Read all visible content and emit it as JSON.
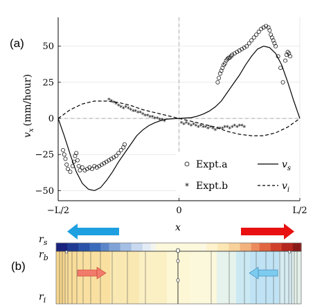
{
  "panel_a_label": "(a)",
  "panel_b_label": "(b)",
  "chart_data": {
    "type": "scatter",
    "xlabel": "x",
    "ylabel": "v_x (mm/hour)",
    "ylabel_var": "v",
    "ylabel_sub": "x",
    "ylabel_unit": "(mm/hour)",
    "xlim": [
      -1,
      1
    ],
    "ylim": [
      -57,
      70
    ],
    "x_ticks": [
      {
        "value": -1,
        "label": "−L/2"
      },
      {
        "value": 0,
        "label": "0"
      },
      {
        "value": 1,
        "label": "L/2"
      }
    ],
    "y_ticks": [
      {
        "value": 50,
        "label": "50"
      },
      {
        "value": 25,
        "label": "25"
      },
      {
        "value": 0,
        "label": "0"
      },
      {
        "value": -25,
        "label": "−25"
      },
      {
        "value": -50,
        "label": "−50"
      }
    ],
    "grid": true,
    "legend_position": "bottom-right",
    "legend": [
      {
        "label": "Expt.a",
        "marker": "circle"
      },
      {
        "label": "Expt.b",
        "marker": "asterisk"
      },
      {
        "label": "v_s",
        "var": "v",
        "sub": "s",
        "line": "solid"
      },
      {
        "label": "v_i",
        "var": "v",
        "sub": "i",
        "line": "dashed"
      }
    ],
    "series": [
      {
        "name": "Expt.a",
        "marker": "circle",
        "points": [
          [
            -0.96,
            -22
          ],
          [
            -0.95,
            -25
          ],
          [
            -0.94,
            -28
          ],
          [
            -0.93,
            -32
          ],
          [
            -0.92,
            -35
          ],
          [
            -0.9,
            -37
          ],
          [
            -0.88,
            -33
          ],
          [
            -0.87,
            -30
          ],
          [
            -0.86,
            -26
          ],
          [
            -0.85,
            -24
          ],
          [
            -0.84,
            -29
          ],
          [
            -0.83,
            -33
          ],
          [
            -0.82,
            -36
          ],
          [
            -0.8,
            -34
          ],
          [
            -0.78,
            -36
          ],
          [
            -0.76,
            -35
          ],
          [
            -0.74,
            -34
          ],
          [
            -0.72,
            -35
          ],
          [
            -0.7,
            -33
          ],
          [
            -0.68,
            -34
          ],
          [
            -0.66,
            -33
          ],
          [
            -0.64,
            -32
          ],
          [
            -0.62,
            -31
          ],
          [
            -0.6,
            -30
          ],
          [
            -0.58,
            -29
          ],
          [
            -0.56,
            -28
          ],
          [
            -0.54,
            -27
          ],
          [
            -0.52,
            -26
          ],
          [
            -0.5,
            -24
          ],
          [
            -0.48,
            -22
          ],
          [
            -0.46,
            -20
          ],
          [
            -0.45,
            -18
          ],
          [
            0.32,
            25
          ],
          [
            0.33,
            28
          ],
          [
            0.34,
            31
          ],
          [
            0.35,
            33
          ],
          [
            0.36,
            35
          ],
          [
            0.37,
            37
          ],
          [
            0.38,
            38
          ],
          [
            0.39,
            40
          ],
          [
            0.4,
            41
          ],
          [
            0.41,
            42
          ],
          [
            0.42,
            42
          ],
          [
            0.43,
            43
          ],
          [
            0.44,
            44
          ],
          [
            0.46,
            45
          ],
          [
            0.48,
            46
          ],
          [
            0.5,
            47
          ],
          [
            0.52,
            48
          ],
          [
            0.54,
            49
          ],
          [
            0.56,
            50
          ],
          [
            0.58,
            52
          ],
          [
            0.6,
            54
          ],
          [
            0.62,
            56
          ],
          [
            0.64,
            58
          ],
          [
            0.66,
            60
          ],
          [
            0.68,
            62
          ],
          [
            0.7,
            63
          ],
          [
            0.72,
            64
          ],
          [
            0.74,
            63
          ],
          [
            0.75,
            61
          ],
          [
            0.76,
            58
          ],
          [
            0.77,
            56
          ],
          [
            0.78,
            54
          ],
          [
            0.79,
            52
          ],
          [
            0.8,
            50
          ],
          [
            0.82,
            43
          ],
          [
            0.84,
            35
          ],
          [
            0.86,
            25
          ],
          [
            0.88,
            40
          ],
          [
            0.89,
            44
          ],
          [
            0.9,
            46
          ],
          [
            0.91,
            45
          ],
          [
            0.92,
            43
          ]
        ]
      },
      {
        "name": "Expt.b",
        "marker": "asterisk",
        "points": [
          [
            -0.58,
            13
          ],
          [
            -0.56,
            12
          ],
          [
            -0.54,
            11
          ],
          [
            -0.52,
            10
          ],
          [
            -0.5,
            9
          ],
          [
            -0.48,
            8
          ],
          [
            -0.46,
            7
          ],
          [
            -0.44,
            8
          ],
          [
            -0.42,
            7
          ],
          [
            -0.4,
            6
          ],
          [
            -0.38,
            5
          ],
          [
            -0.36,
            5
          ],
          [
            -0.34,
            4
          ],
          [
            -0.32,
            4
          ],
          [
            -0.3,
            3
          ],
          [
            -0.28,
            2
          ],
          [
            -0.26,
            2
          ],
          [
            -0.24,
            1
          ],
          [
            -0.22,
            1
          ],
          [
            -0.2,
            0
          ],
          [
            -0.18,
            0
          ],
          [
            -0.16,
            -1
          ],
          [
            -0.14,
            -1
          ],
          [
            -0.12,
            -2
          ],
          [
            0.02,
            -3
          ],
          [
            0.04,
            -4
          ],
          [
            0.06,
            -3
          ],
          [
            0.08,
            -4
          ],
          [
            0.1,
            -5
          ],
          [
            0.12,
            -4
          ],
          [
            0.14,
            -5
          ],
          [
            0.16,
            -6
          ],
          [
            0.18,
            -5
          ],
          [
            0.2,
            -6
          ],
          [
            0.22,
            -6
          ],
          [
            0.24,
            -7
          ],
          [
            0.26,
            -6
          ],
          [
            0.28,
            -7
          ],
          [
            0.3,
            -8
          ],
          [
            0.32,
            -7
          ],
          [
            0.34,
            -7
          ],
          [
            0.36,
            -7
          ],
          [
            0.38,
            -6
          ],
          [
            0.4,
            -6
          ],
          [
            0.42,
            -7
          ],
          [
            0.44,
            -6
          ],
          [
            0.46,
            -5
          ],
          [
            0.48,
            -6
          ],
          [
            0.5,
            -5
          ],
          [
            0.52,
            -5
          ],
          [
            0.54,
            -6
          ]
        ]
      },
      {
        "name": "v_s",
        "line": "solid",
        "points": [
          [
            -1,
            0
          ],
          [
            -0.95,
            -12
          ],
          [
            -0.9,
            -25
          ],
          [
            -0.85,
            -37
          ],
          [
            -0.8,
            -45
          ],
          [
            -0.75,
            -49
          ],
          [
            -0.7,
            -50
          ],
          [
            -0.65,
            -48
          ],
          [
            -0.6,
            -43
          ],
          [
            -0.55,
            -37
          ],
          [
            -0.5,
            -30
          ],
          [
            -0.45,
            -24
          ],
          [
            -0.4,
            -18
          ],
          [
            -0.35,
            -12
          ],
          [
            -0.3,
            -8
          ],
          [
            -0.25,
            -5
          ],
          [
            -0.2,
            -3
          ],
          [
            -0.15,
            -1.5
          ],
          [
            -0.1,
            -0.5
          ],
          [
            0,
            0
          ],
          [
            0.1,
            0.5
          ],
          [
            0.15,
            1.5
          ],
          [
            0.2,
            3
          ],
          [
            0.25,
            5
          ],
          [
            0.3,
            8
          ],
          [
            0.35,
            12
          ],
          [
            0.4,
            18
          ],
          [
            0.45,
            24
          ],
          [
            0.5,
            30
          ],
          [
            0.55,
            37
          ],
          [
            0.6,
            43
          ],
          [
            0.65,
            48
          ],
          [
            0.7,
            50
          ],
          [
            0.75,
            49
          ],
          [
            0.8,
            45
          ],
          [
            0.85,
            37
          ],
          [
            0.9,
            25
          ],
          [
            0.95,
            12
          ],
          [
            1,
            0
          ]
        ]
      },
      {
        "name": "v_i",
        "line": "dashed",
        "points": [
          [
            -1,
            0
          ],
          [
            -0.9,
            6
          ],
          [
            -0.8,
            10
          ],
          [
            -0.7,
            12
          ],
          [
            -0.6,
            12
          ],
          [
            -0.5,
            11
          ],
          [
            -0.4,
            9
          ],
          [
            -0.3,
            6
          ],
          [
            -0.2,
            4
          ],
          [
            -0.1,
            2
          ],
          [
            0,
            0
          ],
          [
            0.1,
            -2
          ],
          [
            0.2,
            -4
          ],
          [
            0.3,
            -6
          ],
          [
            0.4,
            -9
          ],
          [
            0.5,
            -11
          ],
          [
            0.6,
            -12
          ],
          [
            0.7,
            -12
          ],
          [
            0.8,
            -10
          ],
          [
            0.9,
            -6
          ],
          [
            1,
            0
          ]
        ]
      }
    ]
  },
  "schematic": {
    "labels": [
      {
        "var": "r",
        "sub": "s"
      },
      {
        "var": "r",
        "sub": "b"
      },
      {
        "var": "r",
        "sub": "i"
      }
    ],
    "colors": {
      "arrow_left": "#1e9fe0",
      "arrow_right": "#e81010",
      "arrow_small_left": "#7ecbf0",
      "arrow_small_right": "#f27a6a"
    }
  }
}
